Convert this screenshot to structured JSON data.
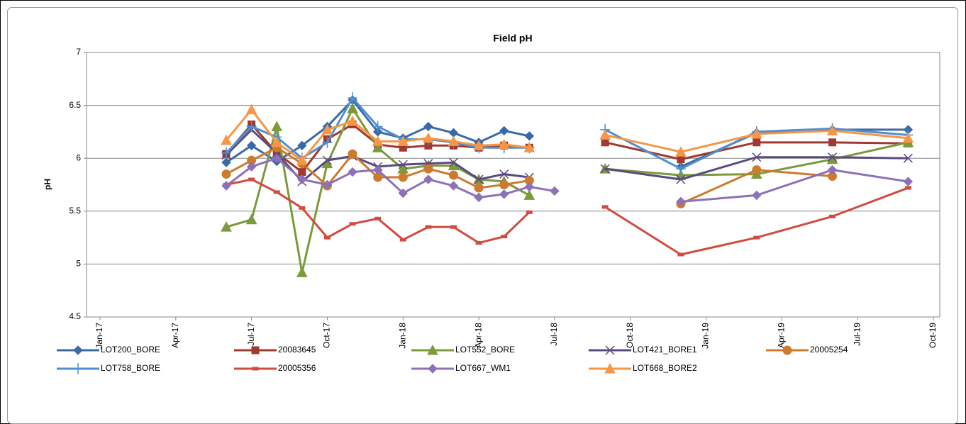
{
  "chart_data": {
    "type": "line",
    "title": "Field pH",
    "y_label": "pH",
    "x": [
      "2017-06",
      "2017-07",
      "2017-08",
      "2017-09",
      "2017-10",
      "2017-11",
      "2017-12",
      "2018-01",
      "2018-02",
      "2018-03",
      "2018-04",
      "2018-05",
      "2018-06",
      "2018-07",
      "2018-09",
      "2018-12",
      "2019-03",
      "2019-06",
      "2019-09"
    ],
    "xlim": [
      "2017-01",
      "2019-10"
    ],
    "xticks": [
      {
        "value": "2017-01",
        "label": "Jan-17"
      },
      {
        "value": "2017-04",
        "label": "Apr-17"
      },
      {
        "value": "2017-07",
        "label": "Jul-17"
      },
      {
        "value": "2017-10",
        "label": "Oct-17"
      },
      {
        "value": "2018-01",
        "label": "Jan-18"
      },
      {
        "value": "2018-04",
        "label": "Apr-18"
      },
      {
        "value": "2018-07",
        "label": "Jul-18"
      },
      {
        "value": "2018-10",
        "label": "Oct-18"
      },
      {
        "value": "2019-01",
        "label": "Jan-19"
      },
      {
        "value": "2019-04",
        "label": "Apr-19"
      },
      {
        "value": "2019-07",
        "label": "Jul-19"
      },
      {
        "value": "2019-10",
        "label": "Oct-19"
      }
    ],
    "ylim": [
      4.5,
      7
    ],
    "yticks": [
      4.5,
      5,
      5.5,
      6,
      6.5,
      7
    ],
    "grid": true,
    "legend": "bottom",
    "series": [
      {
        "name": "LOT200_BORE",
        "color": "#3a6aa5",
        "marker": "diamond",
        "values": [
          5.96,
          6.12,
          5.97,
          6.12,
          6.3,
          6.55,
          6.25,
          6.19,
          6.3,
          6.24,
          6.15,
          6.26,
          6.21,
          null,
          null,
          5.92,
          6.24,
          6.27,
          6.27
        ]
      },
      {
        "name": "20083645",
        "color": "#a0392f",
        "marker": "square",
        "values": [
          6.04,
          6.32,
          6.05,
          5.87,
          6.18,
          6.32,
          6.13,
          6.1,
          6.12,
          6.12,
          6.1,
          6.12,
          6.1,
          null,
          6.15,
          5.99,
          6.15,
          6.15,
          6.14
        ]
      },
      {
        "name": "LOT552_BORE",
        "color": "#7b9a3a",
        "marker": "triangle",
        "values": [
          5.35,
          5.42,
          6.3,
          4.92,
          5.95,
          6.47,
          6.1,
          5.9,
          5.93,
          5.93,
          5.8,
          5.78,
          5.65,
          null,
          5.9,
          5.84,
          5.85,
          5.99,
          6.15
        ]
      },
      {
        "name": "LOT421_BORE1",
        "color": "#5b4a82",
        "marker": "x",
        "values": [
          6.03,
          6.27,
          6.05,
          5.78,
          5.98,
          6.02,
          5.92,
          5.94,
          5.95,
          5.96,
          5.8,
          5.85,
          5.82,
          null,
          5.9,
          5.8,
          6.01,
          6.01,
          6.0
        ]
      },
      {
        "name": "20005254",
        "color": "#cc7a2e",
        "marker": "circle",
        "values": [
          5.85,
          5.98,
          6.1,
          5.95,
          5.74,
          6.04,
          5.82,
          5.82,
          5.9,
          5.84,
          5.72,
          5.75,
          5.79,
          null,
          null,
          5.57,
          5.89,
          5.83,
          null
        ]
      },
      {
        "name": "LOT758_BORE",
        "color": "#4f8fd0",
        "marker": "plus",
        "values": [
          6.05,
          6.3,
          6.2,
          6.0,
          6.15,
          6.57,
          6.3,
          6.18,
          6.18,
          6.15,
          6.1,
          6.1,
          6.1,
          null,
          6.27,
          5.9,
          6.25,
          6.28,
          6.22
        ]
      },
      {
        "name": "20005356",
        "color": "#d34a3f",
        "marker": "dash",
        "values": [
          5.75,
          5.8,
          5.68,
          5.53,
          5.25,
          5.38,
          5.43,
          5.23,
          5.35,
          5.35,
          5.2,
          5.26,
          5.49,
          null,
          5.54,
          5.09,
          5.25,
          5.45,
          5.72
        ]
      },
      {
        "name": "LOT667_WM1",
        "color": "#8c70b8",
        "marker": "diamond",
        "values": [
          5.74,
          5.92,
          6.0,
          5.8,
          5.75,
          5.87,
          5.89,
          5.67,
          5.8,
          5.74,
          5.63,
          5.66,
          5.73,
          5.69,
          null,
          5.59,
          5.65,
          5.89,
          5.78
        ]
      },
      {
        "name": "LOT668_BORE2",
        "color": "#f79646",
        "marker": "triangle",
        "values": [
          6.17,
          6.46,
          6.15,
          5.98,
          6.27,
          6.35,
          6.16,
          6.16,
          6.19,
          6.16,
          6.12,
          6.13,
          6.1,
          null,
          6.22,
          6.06,
          6.23,
          6.26,
          6.19
        ]
      }
    ]
  }
}
